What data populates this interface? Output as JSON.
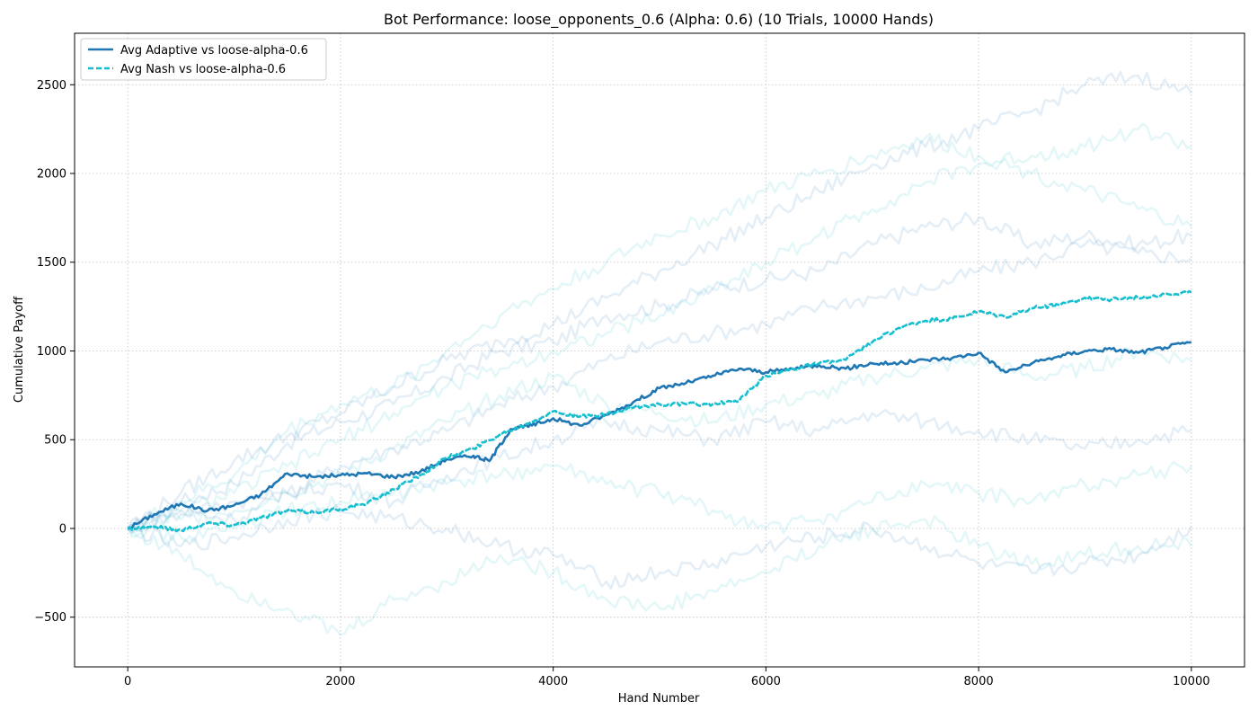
{
  "chart_data": {
    "type": "line",
    "title": "Bot Performance: loose_opponents_0.6 (Alpha: 0.6) (10 Trials, 10000 Hands)",
    "xlabel": "Hand Number",
    "ylabel": "Cumulative Payoff",
    "xlim": [
      -500,
      10500
    ],
    "ylim": [
      -780,
      2790
    ],
    "x_ticks": [
      0,
      2000,
      4000,
      6000,
      8000,
      10000
    ],
    "x_tick_labels": [
      "0",
      "2000",
      "4000",
      "6000",
      "8000",
      "10000"
    ],
    "y_ticks": [
      -500,
      0,
      500,
      1000,
      1500,
      2000,
      2500
    ],
    "y_tick_labels": [
      "−500",
      "0",
      "500",
      "1000",
      "1500",
      "2000",
      "2500"
    ],
    "grid": true,
    "legend_position": "top-left",
    "series": [
      {
        "name": "Avg Adaptive vs loose-alpha-0.6",
        "color": "#1f77b4",
        "style": "solid",
        "x": [
          0,
          250,
          500,
          750,
          1000,
          1250,
          1500,
          1750,
          2000,
          2250,
          2500,
          2750,
          3000,
          3250,
          3400,
          3600,
          3800,
          4000,
          4250,
          4500,
          4750,
          5000,
          5250,
          5500,
          5750,
          6000,
          6250,
          6500,
          6750,
          7000,
          7250,
          7500,
          7750,
          8000,
          8250,
          8500,
          8750,
          9000,
          9250,
          9500,
          9750,
          10000
        ],
        "y": [
          0,
          80,
          140,
          100,
          130,
          190,
          310,
          290,
          300,
          310,
          290,
          320,
          390,
          410,
          380,
          560,
          580,
          620,
          580,
          640,
          710,
          790,
          820,
          860,
          900,
          880,
          900,
          920,
          900,
          930,
          930,
          950,
          960,
          990,
          880,
          930,
          970,
          1000,
          1010,
          990,
          1020,
          1050
        ]
      },
      {
        "name": "Avg Nash vs loose-alpha-0.6",
        "color": "#17becf",
        "style": "dashed",
        "x": [
          0,
          250,
          500,
          750,
          1000,
          1250,
          1500,
          1750,
          2000,
          2250,
          2500,
          2750,
          3000,
          3250,
          3500,
          3750,
          4000,
          4250,
          4500,
          4750,
          5000,
          5250,
          5500,
          5750,
          6000,
          6250,
          6500,
          6750,
          7000,
          7250,
          7500,
          7750,
          8000,
          8250,
          8500,
          8750,
          9000,
          9250,
          9500,
          9750,
          10000
        ],
        "y": [
          0,
          10,
          -10,
          30,
          20,
          60,
          100,
          90,
          110,
          140,
          220,
          300,
          400,
          450,
          530,
          590,
          660,
          630,
          640,
          680,
          700,
          700,
          700,
          720,
          860,
          900,
          930,
          950,
          1050,
          1130,
          1170,
          1180,
          1220,
          1190,
          1240,
          1260,
          1300,
          1290,
          1300,
          1320,
          1330
        ]
      }
    ],
    "trials": [
      {
        "color": "#1f77b4",
        "y_end": 1650,
        "x": [
          0,
          500,
          1000,
          1500,
          2000,
          2500,
          3000,
          3500,
          4000,
          4500,
          5000,
          5500,
          6000,
          6500,
          7000,
          7500,
          8000,
          8500,
          9000,
          9500,
          10000
        ],
        "y": [
          0,
          150,
          250,
          480,
          600,
          700,
          850,
          1000,
          1050,
          1200,
          1250,
          1350,
          1400,
          1450,
          1600,
          1700,
          1750,
          1600,
          1650,
          1600,
          1650
        ]
      },
      {
        "color": "#1f77b4",
        "y_end": 1520,
        "x": [
          0,
          500,
          1000,
          1500,
          2000,
          2500,
          3000,
          3500,
          4000,
          4500,
          5000,
          5500,
          6000,
          6500,
          7000,
          7500,
          8000,
          8500,
          9000,
          9500,
          10000
        ],
        "y": [
          0,
          80,
          150,
          200,
          350,
          450,
          550,
          700,
          800,
          950,
          1050,
          1100,
          1150,
          1250,
          1300,
          1350,
          1450,
          1500,
          1600,
          1550,
          1520
        ]
      },
      {
        "color": "#1f77b4",
        "y_end": 2450,
        "x": [
          0,
          500,
          1000,
          1500,
          2000,
          2500,
          3000,
          3500,
          4000,
          4500,
          5000,
          5500,
          6000,
          6500,
          7000,
          7500,
          8000,
          8500,
          9000,
          9500,
          10000
        ],
        "y": [
          0,
          200,
          380,
          520,
          650,
          800,
          950,
          1050,
          1150,
          1300,
          1450,
          1600,
          1750,
          1900,
          2050,
          2150,
          2250,
          2350,
          2500,
          2550,
          2450
        ]
      },
      {
        "color": "#1f77b4",
        "y_end": 550,
        "x": [
          0,
          500,
          1000,
          1500,
          2000,
          2500,
          3000,
          3500,
          4000,
          4500,
          5000,
          5500,
          6000,
          6500,
          7000,
          7500,
          8000,
          8500,
          9000,
          9500,
          10000
        ],
        "y": [
          0,
          100,
          50,
          200,
          250,
          150,
          300,
          400,
          500,
          600,
          550,
          500,
          600,
          550,
          650,
          600,
          550,
          500,
          450,
          500,
          550
        ]
      },
      {
        "color": "#1f77b4",
        "y_end": 10,
        "x": [
          0,
          500,
          1000,
          1500,
          2000,
          2500,
          3000,
          3500,
          4000,
          4500,
          5000,
          5500,
          6000,
          6500,
          7000,
          7500,
          8000,
          8500,
          9000,
          9500,
          10000
        ],
        "y": [
          0,
          -100,
          -50,
          50,
          100,
          50,
          0,
          -100,
          -150,
          -300,
          -250,
          -200,
          -100,
          -50,
          0,
          -100,
          -200,
          -250,
          -200,
          -150,
          10
        ]
      },
      {
        "color": "#17becf",
        "y_end": 1700,
        "x": [
          0,
          500,
          1000,
          1500,
          2000,
          2500,
          3000,
          3500,
          4000,
          4500,
          5000,
          5500,
          6000,
          6500,
          7000,
          7500,
          8000,
          8500,
          9000,
          9500,
          10000
        ],
        "y": [
          0,
          150,
          300,
          550,
          700,
          800,
          1000,
          1200,
          1350,
          1500,
          1650,
          1750,
          1900,
          2000,
          2100,
          2200,
          2100,
          2000,
          1900,
          1800,
          1700
        ]
      },
      {
        "color": "#17becf",
        "y_end": 2150,
        "x": [
          0,
          500,
          1000,
          1500,
          2000,
          2500,
          3000,
          3500,
          4000,
          4500,
          5000,
          5500,
          6000,
          6500,
          7000,
          7500,
          8000,
          8500,
          9000,
          9500,
          10000
        ],
        "y": [
          0,
          100,
          200,
          350,
          500,
          650,
          800,
          900,
          1000,
          1100,
          1200,
          1350,
          1500,
          1650,
          1800,
          1950,
          2050,
          2100,
          2150,
          2250,
          2150
        ]
      },
      {
        "color": "#17becf",
        "y_end": -100,
        "x": [
          0,
          500,
          1000,
          1500,
          2000,
          2500,
          3000,
          3500,
          4000,
          4500,
          5000,
          5500,
          6000,
          6500,
          7000,
          7500,
          8000,
          8500,
          9000,
          9500,
          10000
        ],
        "y": [
          0,
          -150,
          -350,
          -450,
          -600,
          -400,
          -300,
          -150,
          -250,
          -400,
          -450,
          -350,
          -250,
          -100,
          0,
          50,
          -100,
          -200,
          -150,
          -100,
          -100
        ]
      },
      {
        "color": "#17becf",
        "y_end": 950,
        "x": [
          0,
          500,
          1000,
          1500,
          2000,
          2500,
          3000,
          3500,
          4000,
          4500,
          5000,
          5500,
          6000,
          6500,
          7000,
          7500,
          8000,
          8500,
          9000,
          9500,
          10000
        ],
        "y": [
          0,
          50,
          100,
          200,
          300,
          450,
          600,
          750,
          850,
          700,
          650,
          600,
          700,
          750,
          850,
          900,
          950,
          850,
          900,
          1000,
          950
        ]
      },
      {
        "color": "#17becf",
        "y_end": 350,
        "x": [
          0,
          500,
          1000,
          1500,
          2000,
          2500,
          3000,
          3500,
          4000,
          4500,
          5000,
          5500,
          6000,
          6500,
          7000,
          7500,
          8000,
          8500,
          9000,
          9500,
          10000
        ],
        "y": [
          0,
          -50,
          0,
          100,
          150,
          200,
          250,
          300,
          350,
          250,
          200,
          100,
          0,
          50,
          150,
          250,
          200,
          150,
          250,
          300,
          350
        ]
      }
    ]
  }
}
